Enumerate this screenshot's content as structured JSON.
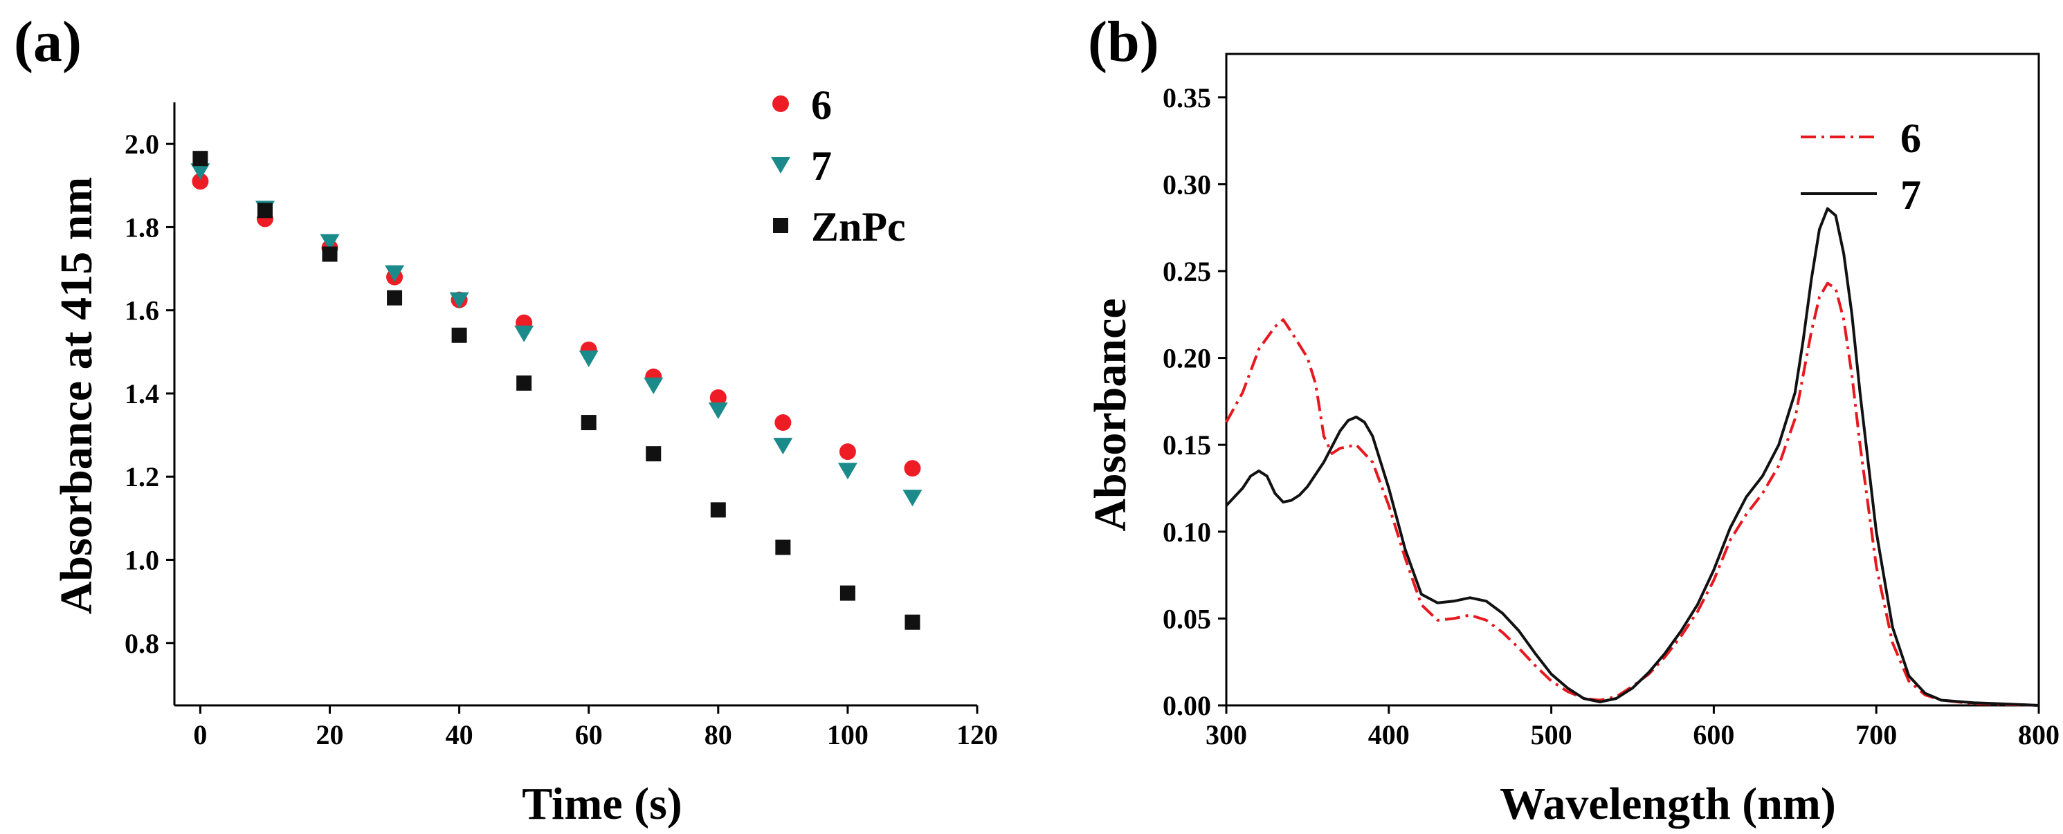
{
  "chart_data": [
    {
      "panel_label": "(a)",
      "type": "scatter",
      "xlabel": "Time (s)",
      "ylabel": "Absorbance at 415 nm",
      "xlim": [
        -4,
        120
      ],
      "ylim": [
        0.65,
        2.1
      ],
      "xticks": [
        "0",
        "20",
        "40",
        "60",
        "80",
        "100",
        "120"
      ],
      "xtick_values": [
        0,
        20,
        40,
        60,
        80,
        100,
        120
      ],
      "yticks": [
        "0.8",
        "1.0",
        "1.2",
        "1.4",
        "1.6",
        "1.8",
        "2.0"
      ],
      "ytick_values": [
        0.8,
        1.0,
        1.2,
        1.4,
        1.6,
        1.8,
        2.0
      ],
      "legend_position": "top-right",
      "series": [
        {
          "name": "6",
          "marker": "circle",
          "color": "#ee1c24",
          "x": [
            0,
            10,
            20,
            30,
            40,
            50,
            60,
            70,
            80,
            90,
            100,
            110
          ],
          "y": [
            1.91,
            1.82,
            1.75,
            1.68,
            1.625,
            1.57,
            1.505,
            1.44,
            1.39,
            1.33,
            1.26,
            1.22
          ]
        },
        {
          "name": "7",
          "marker": "triangle-down",
          "color": "#1a8a8a",
          "x": [
            0,
            10,
            20,
            30,
            40,
            50,
            60,
            70,
            80,
            90,
            100,
            110
          ],
          "y": [
            1.935,
            1.845,
            1.765,
            1.69,
            1.625,
            1.545,
            1.485,
            1.42,
            1.36,
            1.275,
            1.215,
            1.15
          ]
        },
        {
          "name": "ZnPc",
          "marker": "square",
          "color": "#111111",
          "x": [
            0,
            10,
            20,
            30,
            40,
            50,
            60,
            70,
            80,
            90,
            100,
            110
          ],
          "y": [
            1.965,
            1.84,
            1.735,
            1.63,
            1.54,
            1.425,
            1.33,
            1.255,
            1.12,
            1.03,
            0.92,
            0.85
          ]
        }
      ]
    },
    {
      "panel_label": "(b)",
      "type": "line",
      "xlabel": "Wavelength (nm)",
      "ylabel": "Absorbance",
      "xlim": [
        300,
        800
      ],
      "ylim": [
        0,
        0.375
      ],
      "xticks": [
        "300",
        "400",
        "500",
        "600",
        "700",
        "800"
      ],
      "xtick_values": [
        300,
        400,
        500,
        600,
        700,
        800
      ],
      "yticks": [
        "0.00",
        "0.05",
        "0.10",
        "0.15",
        "0.20",
        "0.25",
        "0.30",
        "0.35"
      ],
      "ytick_values": [
        0,
        0.05,
        0.1,
        0.15,
        0.2,
        0.25,
        0.3,
        0.35
      ],
      "legend_position": "top-right",
      "series": [
        {
          "name": "6",
          "style": "dash-dot",
          "color": "#e8181f",
          "x": [
            300,
            310,
            320,
            330,
            335,
            340,
            350,
            355,
            360,
            365,
            370,
            380,
            390,
            400,
            410,
            420,
            430,
            440,
            450,
            460,
            470,
            480,
            490,
            500,
            510,
            520,
            530,
            540,
            550,
            560,
            570,
            580,
            590,
            600,
            610,
            620,
            630,
            640,
            650,
            655,
            660,
            665,
            670,
            675,
            680,
            685,
            690,
            700,
            710,
            720,
            730,
            740,
            760,
            780,
            800
          ],
          "y": [
            0.163,
            0.18,
            0.205,
            0.218,
            0.222,
            0.215,
            0.2,
            0.185,
            0.155,
            0.145,
            0.148,
            0.15,
            0.14,
            0.115,
            0.085,
            0.058,
            0.049,
            0.05,
            0.052,
            0.049,
            0.042,
            0.033,
            0.023,
            0.014,
            0.008,
            0.004,
            0.003,
            0.005,
            0.011,
            0.018,
            0.028,
            0.04,
            0.054,
            0.072,
            0.095,
            0.11,
            0.122,
            0.138,
            0.165,
            0.19,
            0.215,
            0.235,
            0.243,
            0.24,
            0.222,
            0.19,
            0.15,
            0.08,
            0.036,
            0.014,
            0.006,
            0.003,
            0.001,
            0.0005,
            0.0
          ]
        },
        {
          "name": "7",
          "style": "solid",
          "color": "#111111",
          "x": [
            300,
            305,
            310,
            315,
            320,
            325,
            330,
            335,
            340,
            345,
            350,
            360,
            370,
            375,
            380,
            385,
            390,
            400,
            410,
            420,
            430,
            440,
            450,
            460,
            470,
            480,
            490,
            500,
            510,
            520,
            530,
            540,
            550,
            560,
            570,
            580,
            590,
            600,
            610,
            620,
            630,
            640,
            650,
            655,
            660,
            665,
            670,
            675,
            680,
            685,
            690,
            700,
            710,
            720,
            730,
            740,
            760,
            780,
            800
          ],
          "y": [
            0.115,
            0.12,
            0.125,
            0.132,
            0.135,
            0.132,
            0.122,
            0.117,
            0.118,
            0.121,
            0.126,
            0.14,
            0.158,
            0.164,
            0.166,
            0.163,
            0.155,
            0.125,
            0.09,
            0.064,
            0.059,
            0.06,
            0.062,
            0.06,
            0.053,
            0.043,
            0.03,
            0.018,
            0.01,
            0.004,
            0.002,
            0.004,
            0.01,
            0.019,
            0.03,
            0.043,
            0.058,
            0.078,
            0.102,
            0.12,
            0.132,
            0.15,
            0.18,
            0.21,
            0.245,
            0.274,
            0.286,
            0.282,
            0.26,
            0.225,
            0.18,
            0.1,
            0.045,
            0.017,
            0.007,
            0.003,
            0.0015,
            0.0008,
            0.0
          ]
        }
      ]
    }
  ]
}
